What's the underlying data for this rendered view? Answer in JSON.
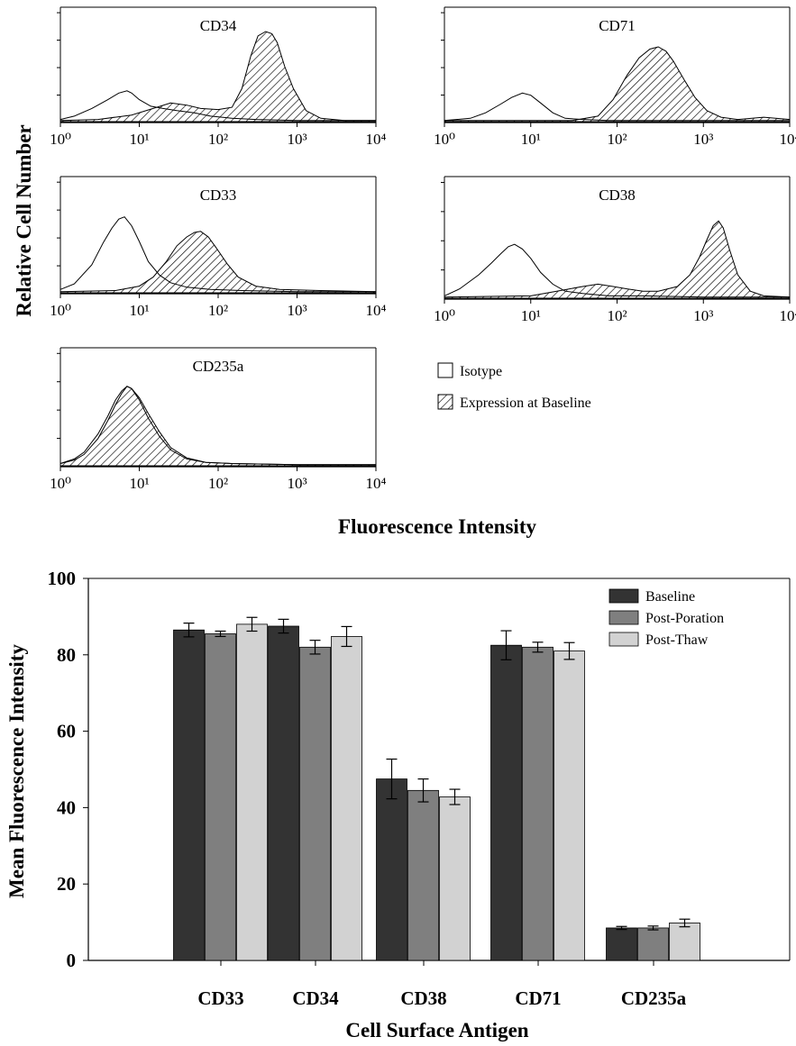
{
  "chart_data": [
    {
      "type": "histogram-panels",
      "ylabel": "Relative Cell Number",
      "xlabel": "Fluorescence Intensity",
      "x_scale": "log",
      "xlim": [
        1,
        10000
      ],
      "x_ticks": [
        1,
        10,
        100,
        1000,
        10000
      ],
      "legend": {
        "placement": "right of CD235a panel",
        "entries": [
          {
            "label": "Isotype",
            "style": "open"
          },
          {
            "label": "Expression at Baseline",
            "style": "hatched"
          }
        ]
      },
      "panels": [
        {
          "title": "CD34",
          "isotype": {
            "x": [
              1,
              1.5,
              2.5,
              4,
              5.5,
              7,
              8,
              10,
              14,
              20,
              30,
              50,
              80,
              150,
              300,
              1000,
              10000
            ],
            "y": [
              0.02,
              0.05,
              0.12,
              0.2,
              0.26,
              0.28,
              0.26,
              0.2,
              0.14,
              0.12,
              0.1,
              0.08,
              0.05,
              0.03,
              0.02,
              0.01,
              0.01
            ]
          },
          "expression": {
            "x": [
              1,
              3,
              8,
              15,
              25,
              40,
              60,
              100,
              150,
              200,
              260,
              320,
              400,
              480,
              560,
              700,
              900,
              1300,
              2000,
              4000,
              10000
            ],
            "y": [
              0.01,
              0.02,
              0.06,
              0.12,
              0.17,
              0.15,
              0.12,
              0.11,
              0.13,
              0.3,
              0.6,
              0.78,
              0.82,
              0.8,
              0.72,
              0.5,
              0.3,
              0.1,
              0.03,
              0.01,
              0.01
            ]
          }
        },
        {
          "title": "CD71",
          "isotype": {
            "x": [
              1,
              2,
              3,
              4.5,
              6,
              8,
              10,
              13,
              18,
              25,
              40,
              80,
              200,
              1000,
              10000
            ],
            "y": [
              0.01,
              0.03,
              0.08,
              0.16,
              0.22,
              0.26,
              0.24,
              0.17,
              0.08,
              0.03,
              0.02,
              0.01,
              0.01,
              0.01,
              0.01
            ]
          },
          "expression": {
            "x": [
              1,
              30,
              60,
              90,
              130,
              180,
              240,
              300,
              370,
              450,
              600,
              800,
              1100,
              1600,
              2500,
              5000,
              10000
            ],
            "y": [
              0.01,
              0.01,
              0.05,
              0.2,
              0.42,
              0.58,
              0.66,
              0.68,
              0.64,
              0.55,
              0.38,
              0.22,
              0.1,
              0.04,
              0.02,
              0.04,
              0.02
            ]
          }
        },
        {
          "title": "CD33",
          "isotype": {
            "x": [
              1,
              1.5,
              2.5,
              3.5,
              4.5,
              5.5,
              6.5,
              8,
              10,
              13,
              18,
              25,
              40,
              80,
              200,
              1000,
              10000
            ],
            "y": [
              0.03,
              0.08,
              0.25,
              0.45,
              0.58,
              0.66,
              0.68,
              0.6,
              0.46,
              0.28,
              0.16,
              0.09,
              0.05,
              0.03,
              0.02,
              0.01,
              0.01
            ]
          },
          "expression": {
            "x": [
              1,
              5,
              10,
              15,
              22,
              30,
              40,
              50,
              60,
              75,
              95,
              130,
              180,
              300,
              600,
              2000,
              10000
            ],
            "y": [
              0.01,
              0.02,
              0.06,
              0.14,
              0.28,
              0.42,
              0.5,
              0.54,
              0.55,
              0.5,
              0.4,
              0.26,
              0.14,
              0.06,
              0.03,
              0.02,
              0.01
            ]
          }
        },
        {
          "title": "CD38",
          "isotype": {
            "x": [
              1,
              1.5,
              2.5,
              3.5,
              4.5,
              5.5,
              6.5,
              8,
              10,
              13,
              18,
              25,
              40,
              80,
              200,
              1000,
              10000
            ],
            "y": [
              0.02,
              0.08,
              0.2,
              0.3,
              0.38,
              0.44,
              0.46,
              0.42,
              0.34,
              0.22,
              0.12,
              0.06,
              0.04,
              0.02,
              0.02,
              0.01,
              0.01
            ]
          },
          "expression": {
            "x": [
              1,
              10,
              20,
              40,
              60,
              90,
              130,
              200,
              300,
              500,
              700,
              900,
              1100,
              1300,
              1500,
              1700,
              2000,
              2500,
              3500,
              5000,
              10000
            ],
            "y": [
              0.01,
              0.02,
              0.06,
              0.1,
              0.12,
              0.1,
              0.08,
              0.06,
              0.06,
              0.1,
              0.2,
              0.35,
              0.5,
              0.62,
              0.66,
              0.6,
              0.42,
              0.2,
              0.06,
              0.02,
              0.01
            ]
          }
        },
        {
          "title": "CD235a",
          "isotype": {
            "x": [
              1,
              1.5,
              2,
              3,
              4,
              5,
              6,
              7,
              8,
              10,
              13,
              18,
              25,
              40,
              70,
              150,
              1000,
              10000
            ],
            "y": [
              0.02,
              0.06,
              0.12,
              0.28,
              0.44,
              0.58,
              0.66,
              0.7,
              0.68,
              0.58,
              0.42,
              0.26,
              0.14,
              0.06,
              0.03,
              0.02,
              0.01,
              0.01
            ]
          },
          "expression": {
            "x": [
              1,
              1.5,
              2,
              3,
              4,
              5,
              6,
              7,
              8,
              10,
              13,
              18,
              25,
              40,
              70,
              150,
              1000,
              10000
            ],
            "y": [
              0.02,
              0.05,
              0.1,
              0.24,
              0.4,
              0.54,
              0.64,
              0.7,
              0.68,
              0.6,
              0.46,
              0.3,
              0.16,
              0.07,
              0.03,
              0.02,
              0.01,
              0.01
            ]
          }
        }
      ]
    },
    {
      "type": "bar",
      "title": "",
      "xlabel": "Cell Surface Antigen",
      "ylabel": "Mean Fluorescence Intensity",
      "ylim": [
        0,
        100
      ],
      "y_ticks": [
        0,
        20,
        40,
        60,
        80,
        100
      ],
      "grid": false,
      "legend": {
        "placement": "top-right"
      },
      "categories": [
        "CD33",
        "CD34",
        "CD38",
        "CD71",
        "CD235a"
      ],
      "series": [
        {
          "name": "Baseline",
          "color": "#333333",
          "values": [
            86.5,
            87.5,
            47.5,
            82.5,
            8.5
          ],
          "errors": [
            1.8,
            1.8,
            5.2,
            3.8,
            0.4
          ]
        },
        {
          "name": "Post-Poration",
          "color": "#7f7f7f",
          "values": [
            85.5,
            82.0,
            44.5,
            82.0,
            8.5
          ],
          "errors": [
            0.7,
            1.8,
            3.0,
            1.3,
            0.5
          ]
        },
        {
          "name": "Post-Thaw",
          "color": "#d2d2d2",
          "values": [
            88.0,
            84.8,
            42.8,
            81.0,
            9.8
          ],
          "errors": [
            1.8,
            2.6,
            2.0,
            2.2,
            1.0
          ]
        }
      ]
    }
  ]
}
